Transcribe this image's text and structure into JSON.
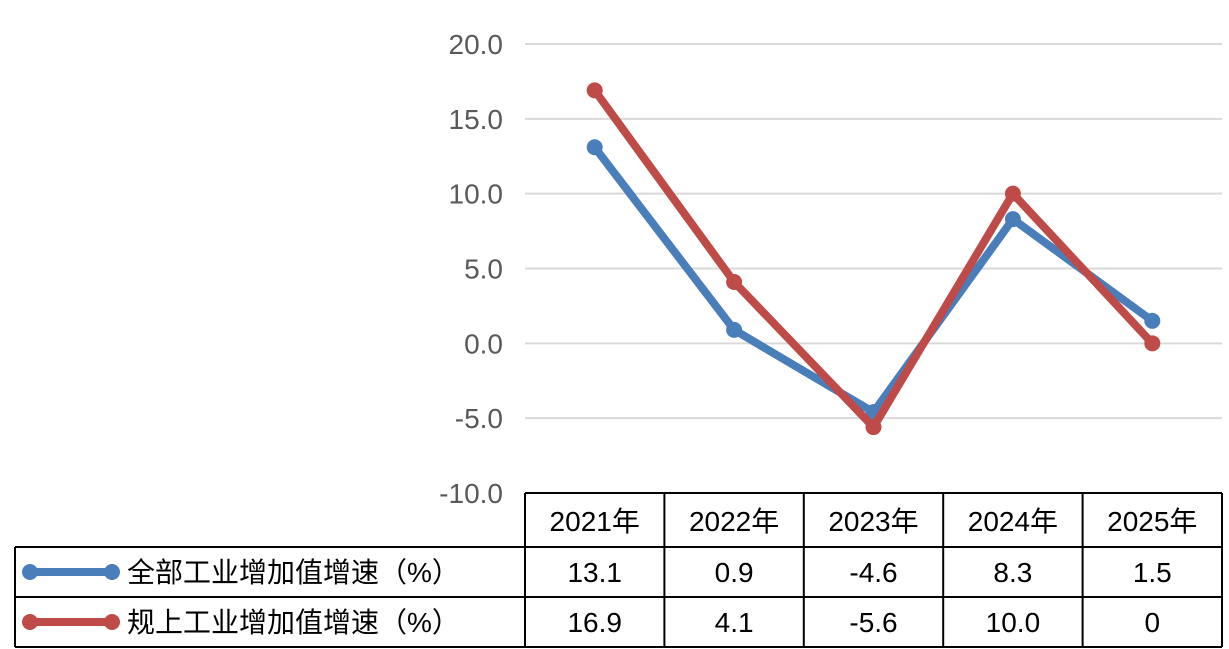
{
  "chart_data": {
    "type": "line",
    "categories": [
      "2021年",
      "2022年",
      "2023年",
      "2024年",
      "2025年"
    ],
    "series": [
      {
        "name": "全部工业增加值增速（%）",
        "color": "#4A7EBB",
        "values": [
          13.1,
          0.9,
          -4.6,
          8.3,
          1.5
        ],
        "value_labels": [
          "13.1",
          "0.9",
          "-4.6",
          "8.3",
          "1.5"
        ]
      },
      {
        "name": "规上工业增加值增速（%）",
        "color": "#BE4B48",
        "values": [
          16.9,
          4.1,
          -5.6,
          10.0,
          0
        ],
        "value_labels": [
          "16.9",
          "4.1",
          "-5.6",
          "10.0",
          "0"
        ]
      }
    ],
    "yticks": [
      "20.0",
      "15.0",
      "10.0",
      "5.0",
      "0.0",
      "-5.0",
      "-10.0"
    ],
    "ylim": [
      -10,
      20
    ],
    "grid": true,
    "legend": "data-table",
    "title": "",
    "xlabel": "",
    "ylabel": ""
  }
}
